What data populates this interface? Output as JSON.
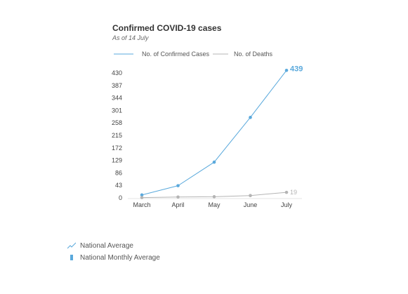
{
  "chart_data": {
    "type": "line",
    "title": "Confirmed COVID-19 cases",
    "subtitle": "As of 14 July",
    "categories": [
      "March",
      "April",
      "May",
      "June",
      "July"
    ],
    "yticks": [
      "430",
      "387",
      "344",
      "301",
      "258",
      "215",
      "172",
      "129",
      "86",
      "43",
      "0"
    ],
    "ylim": [
      0,
      430
    ],
    "legend_position": "top",
    "grid": false,
    "series": [
      {
        "name": "No. of Confirmed  Cases",
        "values": [
          10,
          42,
          123,
          277,
          439
        ],
        "color": "#5aa9dc",
        "end_label": "439"
      },
      {
        "name": "No. of Deaths",
        "values": [
          1,
          3,
          4,
          8,
          19
        ],
        "color": "#b4b4b4",
        "end_label": "19"
      }
    ]
  },
  "bottom_legend": {
    "items": [
      {
        "label": "National Average",
        "icon": "trend-line-icon"
      },
      {
        "label": "National Monthly Average",
        "icon": "bar-icon"
      }
    ],
    "color": "#5aa9dc"
  }
}
